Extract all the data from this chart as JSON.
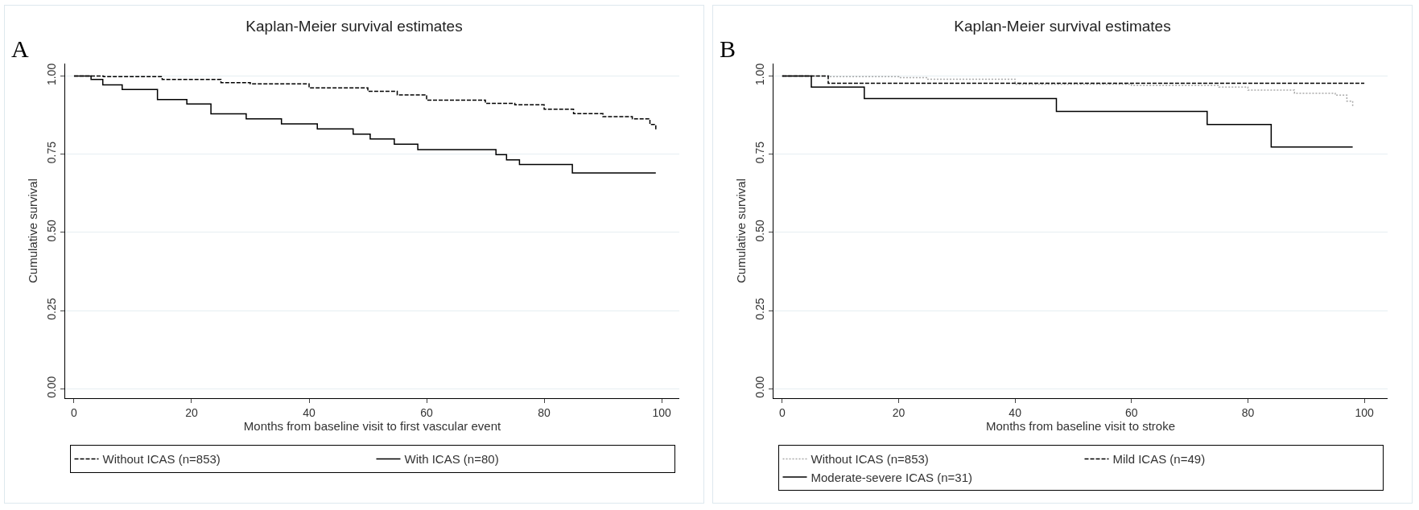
{
  "chart_data": [
    {
      "type": "step",
      "title": "Kaplan-Meier survival estimates",
      "xlabel": "Months from baseline visit to first vascular event",
      "ylabel": "Cumulative survival",
      "annotations": [
        "A"
      ],
      "xlim": [
        -1.5,
        103
      ],
      "xticks": [
        0,
        20,
        40,
        60,
        80,
        100
      ],
      "ylim": [
        -0.03,
        1.04
      ],
      "yticks": [
        {
          "value": 0,
          "label": "0.00"
        },
        {
          "value": 0.25,
          "label": "0.25"
        },
        {
          "value": 0.5,
          "label": "0.50"
        },
        {
          "value": 0.75,
          "label": "0.75"
        },
        {
          "value": 1,
          "label": "1.00"
        }
      ],
      "grid": "y",
      "legend": "bottom",
      "line_style": "solid",
      "series": [
        {
          "name": "Without ICAS (n=853)",
          "color": "#000000",
          "line_style": "dashed",
          "x": [
            0,
            5,
            15,
            25,
            30,
            40,
            50,
            55,
            60,
            70,
            75,
            80,
            85,
            90,
            95,
            98,
            99
          ],
          "values": [
            1.0,
            0.998,
            0.989,
            0.979,
            0.975,
            0.962,
            0.951,
            0.94,
            0.923,
            0.913,
            0.908,
            0.894,
            0.88,
            0.87,
            0.863,
            0.845,
            0.83
          ]
        },
        {
          "name": "With ICAS (n=80)",
          "color": "#000000",
          "x": [
            0,
            2.9,
            4.9,
            8.2,
            14.2,
            19.2,
            23.3,
            29.3,
            35.3,
            41.4,
            47.5,
            50.4,
            54.5,
            58.5,
            71.8,
            73.6,
            75.8,
            84.8,
            99
          ],
          "values": [
            1.0,
            0.989,
            0.972,
            0.957,
            0.925,
            0.911,
            0.879,
            0.863,
            0.847,
            0.831,
            0.814,
            0.799,
            0.782,
            0.765,
            0.749,
            0.732,
            0.717,
            0.69,
            0.69
          ]
        }
      ]
    },
    {
      "type": "step",
      "title": "Kaplan-Meier survival estimates",
      "xlabel": "Months from baseline visit to stroke",
      "ylabel": "Cumulative survival",
      "annotations": [
        "B"
      ],
      "xlim": [
        -1.5,
        104
      ],
      "xticks": [
        0,
        20,
        40,
        60,
        80,
        100
      ],
      "ylim": [
        -0.03,
        1.04
      ],
      "yticks": [
        {
          "value": 0,
          "label": "0.00"
        },
        {
          "value": 0.25,
          "label": "0.25"
        },
        {
          "value": 0.5,
          "label": "0.50"
        },
        {
          "value": 0.75,
          "label": "0.75"
        },
        {
          "value": 1,
          "label": "1.00"
        }
      ],
      "grid": "y",
      "legend": "bottom",
      "line_style": "solid",
      "series": [
        {
          "name": "Without ICAS (n=853)",
          "color": "#aaaaaa",
          "line_style": "dotted",
          "x": [
            0,
            8,
            20,
            25,
            40,
            60,
            75,
            80,
            88,
            95,
            97,
            98
          ],
          "values": [
            1.0,
            0.998,
            0.995,
            0.99,
            0.974,
            0.97,
            0.965,
            0.955,
            0.945,
            0.939,
            0.92,
            0.903
          ]
        },
        {
          "name": "Mild ICAS (n=49)",
          "color": "#000000",
          "line_style": "dashed",
          "x": [
            0,
            7.9,
            100
          ],
          "values": [
            1.0,
            0.977,
            0.977
          ]
        },
        {
          "name": "Moderate-severe ICAS (n=31)",
          "color": "#000000",
          "x": [
            0,
            5.0,
            14.1,
            47.1,
            73.0,
            84.0,
            98
          ],
          "values": [
            1.0,
            0.965,
            0.928,
            0.887,
            0.845,
            0.773,
            0.773
          ]
        }
      ]
    }
  ]
}
